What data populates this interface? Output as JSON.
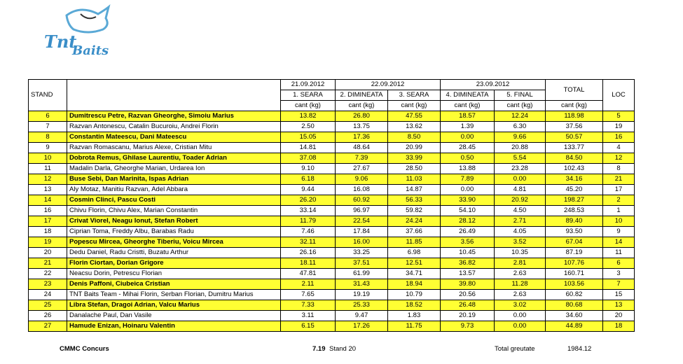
{
  "logo": {
    "word1": "Tnt",
    "word2": "Baits"
  },
  "table": {
    "header": {
      "stand": "STAND",
      "dates": [
        "21.09.2012",
        "22.09.2012",
        "23.09.2012"
      ],
      "rounds": [
        "1. SEARA",
        "2. DIMINEATA",
        "3. SEARA",
        "4. DIMINEATA",
        "5. FINAL"
      ],
      "total": "TOTAL",
      "loc": "LOC",
      "unit": "cant (kg)"
    },
    "rows": [
      [
        "6",
        "Dumitrescu Petre, Razvan Gheorghe, Simoiu Marius",
        "13.82",
        "26.80",
        "47.55",
        "18.57",
        "12.24",
        "118.98",
        "5"
      ],
      [
        "7",
        "Razvan Antonescu, Catalin Bucuroiu, Andrei Florin",
        "2.50",
        "13.75",
        "13.62",
        "1.39",
        "6.30",
        "37.56",
        "19"
      ],
      [
        "8",
        "Constantin Mateescu, Dani Mateescu",
        "15.05",
        "17.36",
        "8.50",
        "0.00",
        "9.66",
        "50.57",
        "16"
      ],
      [
        "9",
        "Razvan Romascanu, Marius Alexe, Cristian Mitu",
        "14.81",
        "48.64",
        "20.99",
        "28.45",
        "20.88",
        "133.77",
        "4"
      ],
      [
        "10",
        "Dobrota Remus, Ghilase Laurentiu, Toader Adrian",
        "37.08",
        "7.39",
        "33.99",
        "0.50",
        "5.54",
        "84.50",
        "12"
      ],
      [
        "11",
        "Madalin Darla, Gheorghe Marian, Urdarea Ion",
        "9.10",
        "27.67",
        "28.50",
        "13.88",
        "23.28",
        "102.43",
        "8"
      ],
      [
        "12",
        "Buse Sebi, Dan Marinita, Ispas Adrian",
        "6.18",
        "9.06",
        "11.03",
        "7.89",
        "0.00",
        "34.16",
        "21"
      ],
      [
        "13",
        "Aly Motaz, Manitiu Razvan, Adel Abbara",
        "9.44",
        "16.08",
        "14.87",
        "0.00",
        "4.81",
        "45.20",
        "17"
      ],
      [
        "14",
        "Cosmin Clinci, Pascu Costi",
        "26.20",
        "60.92",
        "56.33",
        "33.90",
        "20.92",
        "198.27",
        "2"
      ],
      [
        "16",
        "Chivu Florin, Chivu Alex, Marian Constantin",
        "33.14",
        "96.97",
        "59.82",
        "54.10",
        "4.50",
        "248.53",
        "1"
      ],
      [
        "17",
        "Crivat Viorel, Neagu Ionut, Stefan Robert",
        "11.79",
        "22.54",
        "24.24",
        "28.12",
        "2.71",
        "89.40",
        "10"
      ],
      [
        "18",
        "Ciprian Toma, Freddy Albu, Barabas Radu",
        "7.46",
        "17.84",
        "37.66",
        "26.49",
        "4.05",
        "93.50",
        "9"
      ],
      [
        "19",
        "Popescu Mircea, Gheorghe Tiberiu, Voicu Mircea",
        "32.11",
        "16.00",
        "11.85",
        "3.56",
        "3.52",
        "67.04",
        "14"
      ],
      [
        "20",
        "Dedu Daniel, Radu Cristti, Buzatu Arthur",
        "26.16",
        "33.25",
        "6.98",
        "10.45",
        "10.35",
        "87.19",
        "11"
      ],
      [
        "21",
        "Florin Ciortan, Dorian Grigore",
        "18.11",
        "37.51",
        "12.51",
        "36.82",
        "2.81",
        "107.76",
        "6"
      ],
      [
        "22",
        "Neacsu Dorin, Petrescu Florian",
        "47.81",
        "61.99",
        "34.71",
        "13.57",
        "2.63",
        "160.71",
        "3"
      ],
      [
        "23",
        "Denis Paffoni, Ciubeica Cristian",
        "2.11",
        "31.43",
        "18.94",
        "39.80",
        "11.28",
        "103.56",
        "7"
      ],
      [
        "24",
        "TNT Baits Team - Mihai Florin, Serban Florian, Dumitru Marius",
        "7.65",
        "19.19",
        "10.79",
        "20.56",
        "2.63",
        "60.82",
        "15"
      ],
      [
        "25",
        "Libra Stefan, Dragoi Adrian, Valcu Marius",
        "7.33",
        "25.33",
        "18.52",
        "26.48",
        "3.02",
        "80.68",
        "13"
      ],
      [
        "26",
        "Danalache Paul, Dan Vasile",
        "3.11",
        "9.47",
        "1.83",
        "20.19",
        "0.00",
        "34.60",
        "20"
      ],
      [
        "27",
        "Hamude Enizan, Hoinaru Valentin",
        "6.15",
        "17.26",
        "11.75",
        "9.73",
        "0.00",
        "44.89",
        "18"
      ]
    ]
  },
  "footer": {
    "event": "CMMC Concurs",
    "best_catch": "7.19",
    "best_stand": "Stand 20",
    "total_label": "Total greutate",
    "total_value": "1984.12"
  }
}
